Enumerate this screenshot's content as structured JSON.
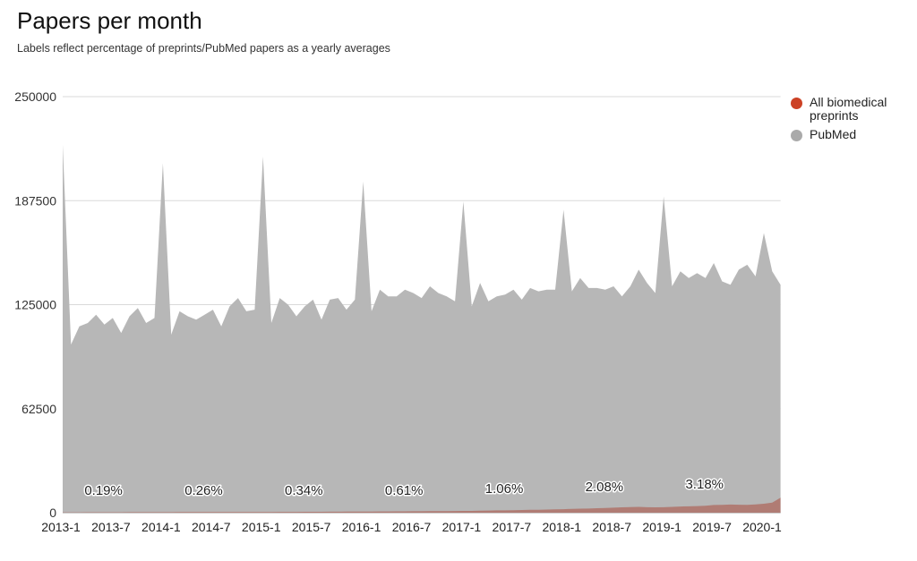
{
  "title": "Papers per month",
  "subtitle": "Labels reflect percentage of preprints/PubMed papers as a yearly averages",
  "legend": [
    {
      "label": "All biomedical preprints",
      "color": "#cc4125"
    },
    {
      "label": "PubMed",
      "color": "#aaaaaa"
    }
  ],
  "chart_data": {
    "type": "area",
    "title": "Papers per month",
    "subtitle": "Labels reflect percentage of preprints/PubMed papers as a yearly averages",
    "xlabel": "",
    "ylabel": "",
    "ylim": [
      0,
      250000
    ],
    "yticks": [
      0,
      62500,
      125000,
      187500,
      250000
    ],
    "xticks": [
      "2013-1",
      "2013-7",
      "2014-1",
      "2014-7",
      "2015-1",
      "2015-7",
      "2016-1",
      "2016-7",
      "2017-1",
      "2017-7",
      "2018-1",
      "2018-7",
      "2019-1",
      "2019-7",
      "2020-1"
    ],
    "grid": true,
    "legend_position": "right",
    "stacked": false,
    "x_start": "2013-1",
    "x_end": "2020-3",
    "series": [
      {
        "name": "PubMed",
        "color": "#b7b7b7",
        "values": [
          221000,
          101000,
          112000,
          114000,
          119000,
          113000,
          117000,
          108000,
          118000,
          123000,
          114000,
          117000,
          210000,
          107000,
          121000,
          118000,
          116000,
          119000,
          122000,
          112000,
          124000,
          129000,
          121000,
          122000,
          214000,
          114000,
          129000,
          125000,
          118000,
          124000,
          128000,
          116000,
          128000,
          129000,
          122000,
          128000,
          199000,
          121000,
          134000,
          130000,
          130000,
          134000,
          132000,
          129000,
          136000,
          132000,
          130000,
          127000,
          187000,
          124000,
          138000,
          127000,
          130000,
          131000,
          134000,
          128000,
          135000,
          133000,
          134000,
          134000,
          182000,
          133000,
          141000,
          135000,
          135000,
          134000,
          136000,
          130000,
          136000,
          146000,
          138000,
          132000,
          190000,
          136000,
          145000,
          141000,
          144000,
          141000,
          150000,
          139000,
          137000,
          146000,
          149000,
          142000,
          168000,
          145000,
          137000
        ]
      },
      {
        "name": "All biomedical preprints",
        "color": "#cc4125",
        "values": [
          200,
          200,
          200,
          250,
          250,
          250,
          250,
          250,
          300,
          300,
          300,
          300,
          300,
          300,
          350,
          350,
          350,
          350,
          400,
          400,
          400,
          400,
          450,
          450,
          450,
          450,
          500,
          500,
          500,
          550,
          550,
          550,
          600,
          600,
          650,
          650,
          700,
          700,
          750,
          750,
          800,
          800,
          850,
          850,
          900,
          950,
          950,
          1000,
          1050,
          1100,
          1200,
          1300,
          1400,
          1400,
          1500,
          1600,
          1700,
          1800,
          1900,
          2000,
          2100,
          2300,
          2400,
          2500,
          2700,
          2800,
          3000,
          3200,
          3400,
          3500,
          3300,
          3200,
          3300,
          3500,
          3700,
          3800,
          4000,
          4200,
          4600,
          4700,
          4900,
          4800,
          4700,
          5000,
          5400,
          6000,
          9000
        ]
      }
    ],
    "annotations": [
      {
        "text": "0.19%",
        "year": 2013
      },
      {
        "text": "0.26%",
        "year": 2014
      },
      {
        "text": "0.34%",
        "year": 2015
      },
      {
        "text": "0.61%",
        "year": 2016
      },
      {
        "text": "1.06%",
        "year": 2017
      },
      {
        "text": "2.08%",
        "year": 2018
      },
      {
        "text": "3.18%",
        "year": 2019
      }
    ]
  }
}
